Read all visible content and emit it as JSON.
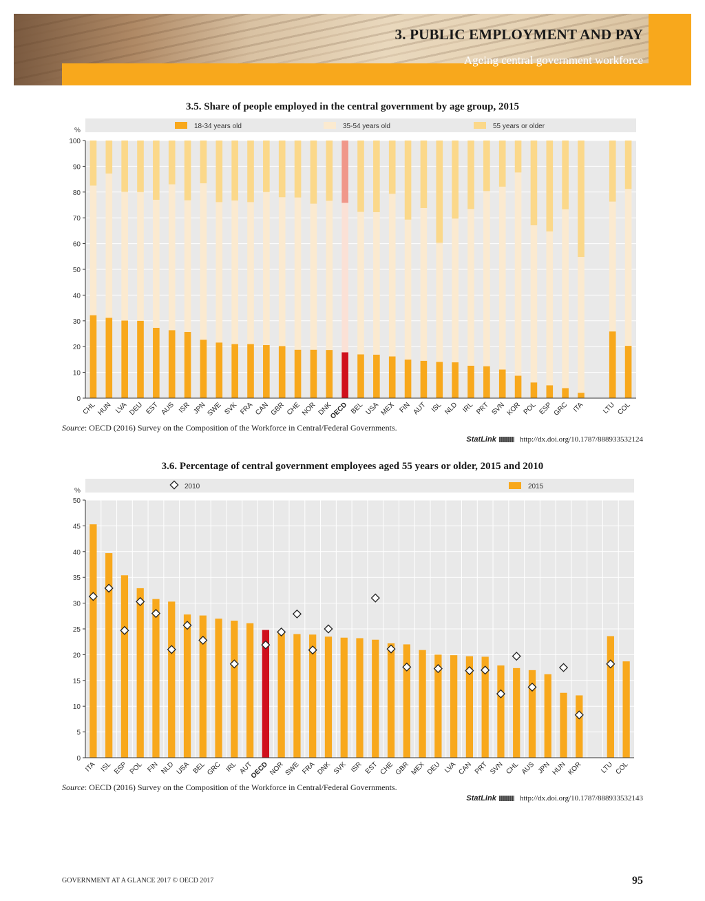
{
  "header": {
    "chapter_title": "3. PUBLIC EMPLOYMENT AND PAY",
    "section_title": "Ageing central government workforce"
  },
  "colors": {
    "orange": "#f8a81c",
    "light_cream": "#fbead0",
    "light_orange": "#fbd88a",
    "oecd_dark": "#d0101c",
    "oecd_light": "#f0978a",
    "grid_bg": "#e9e9e9"
  },
  "figure1": {
    "title": "3.5. Share of people employed in the central government by age group, 2015",
    "source_label": "Source",
    "source_text": ": OECD (2016) Survey on the Composition of the Workforce in Central/Federal Governments.",
    "statlink_name": "StatLink",
    "statlink_url": "http://dx.doi.org/10.1787/888933532124"
  },
  "figure2": {
    "title": "3.6. Percentage of central government employees aged 55 years or older, 2015 and 2010",
    "source_label": "Source",
    "source_text": ": OECD (2016) Survey on the Composition of the Workforce in Central/Federal Governments.",
    "statlink_name": "StatLink",
    "statlink_url": "http://dx.doi.org/10.1787/888933532143"
  },
  "footer": {
    "left": "GOVERNMENT AT A GLANCE 2017 © OECD 2017",
    "page_number": "95"
  },
  "chart_data": [
    {
      "type": "bar",
      "stacked": true,
      "title": "3.5. Share of people employed in the central government by age group, 2015",
      "ylabel": "%",
      "ylim": [
        0,
        100
      ],
      "yticks": [
        0,
        10,
        20,
        30,
        40,
        50,
        60,
        70,
        80,
        90,
        100
      ],
      "legend_position": "top",
      "highlight_category": "OECD",
      "categories": [
        "CHL",
        "HUN",
        "LVA",
        "DEU",
        "EST",
        "AUS",
        "ISR",
        "JPN",
        "SWE",
        "SVK",
        "FRA",
        "CAN",
        "GBR",
        "CHE",
        "NOR",
        "DNK",
        "OECD",
        "BEL",
        "USA",
        "MEX",
        "FIN",
        "AUT",
        "ISL",
        "NLD",
        "IRL",
        "PRT",
        "SVN",
        "KOR",
        "POL",
        "ESP",
        "GRC",
        "ITA",
        "",
        "LTU",
        "COL"
      ],
      "series": [
        {
          "name": "18-34 years old",
          "values": [
            32.2,
            31.2,
            30.1,
            30.0,
            27.3,
            26.4,
            25.7,
            22.7,
            21.6,
            21.0,
            21.0,
            20.6,
            20.2,
            18.8,
            18.8,
            18.7,
            17.8,
            17.0,
            16.9,
            16.2,
            15.0,
            14.5,
            14.1,
            13.9,
            12.6,
            12.4,
            11.1,
            8.7,
            6.1,
            5.0,
            3.9,
            2.1,
            null,
            25.9,
            20.3
          ]
        },
        {
          "name": "35-54 years old",
          "values": [
            50.3,
            56.0,
            50.0,
            50.0,
            49.7,
            56.6,
            51.1,
            60.7,
            54.5,
            55.7,
            55.1,
            59.4,
            57.8,
            59.1,
            56.7,
            57.9,
            58.0,
            55.3,
            55.3,
            63.1,
            54.3,
            59.3,
            46.2,
            55.8,
            60.8,
            68.0,
            71.0,
            78.9,
            61.0,
            59.7,
            69.4,
            52.7,
            null,
            50.4,
            60.9
          ]
        },
        {
          "name": "55 years or older",
          "values": [
            17.5,
            12.8,
            19.9,
            20.0,
            23.0,
            17.0,
            23.2,
            16.6,
            23.9,
            23.3,
            23.9,
            20.0,
            22.0,
            22.1,
            24.5,
            23.4,
            24.2,
            27.7,
            27.8,
            20.7,
            30.7,
            26.2,
            39.7,
            30.3,
            26.6,
            19.6,
            17.9,
            12.4,
            32.9,
            35.3,
            26.7,
            45.2,
            null,
            23.7,
            18.8
          ]
        }
      ]
    },
    {
      "type": "bar",
      "title": "3.6. Percentage of central government employees aged 55 years or older, 2015 and 2010",
      "ylabel": "%",
      "ylim": [
        0,
        50
      ],
      "yticks": [
        0,
        5,
        10,
        15,
        20,
        25,
        30,
        35,
        40,
        45,
        50
      ],
      "legend_position": "top",
      "highlight_category": "OECD",
      "categories": [
        "ITA",
        "ISL",
        "ESP",
        "POL",
        "FIN",
        "NLD",
        "USA",
        "BEL",
        "GRC",
        "IRL",
        "AUT",
        "OECD",
        "NOR",
        "SWE",
        "FRA",
        "DNK",
        "SVK",
        "ISR",
        "EST",
        "CHE",
        "GBR",
        "MEX",
        "DEU",
        "LVA",
        "CAN",
        "PRT",
        "SVN",
        "CHL",
        "AUS",
        "JPN",
        "HUN",
        "KOR",
        "",
        "LTU",
        "COL"
      ],
      "series": [
        {
          "name": "2015",
          "kind": "bar",
          "values": [
            45.3,
            39.7,
            35.4,
            32.9,
            30.8,
            30.3,
            27.8,
            27.6,
            27.0,
            26.6,
            26.1,
            24.8,
            24.5,
            24.0,
            23.9,
            23.5,
            23.3,
            23.2,
            22.9,
            22.2,
            22.0,
            20.9,
            20.0,
            19.9,
            19.7,
            19.6,
            17.9,
            17.4,
            17.0,
            16.2,
            12.6,
            12.1,
            null,
            23.6,
            18.7
          ]
        },
        {
          "name": "2010",
          "kind": "marker",
          "values": [
            31.3,
            32.9,
            24.7,
            30.3,
            28.0,
            21.0,
            25.7,
            22.8,
            null,
            18.2,
            null,
            21.9,
            24.4,
            27.9,
            20.9,
            25.0,
            null,
            null,
            31.0,
            21.1,
            17.6,
            null,
            17.3,
            null,
            16.9,
            17.0,
            12.4,
            19.7,
            13.7,
            null,
            17.5,
            8.3,
            null,
            18.2,
            null
          ]
        }
      ]
    }
  ]
}
